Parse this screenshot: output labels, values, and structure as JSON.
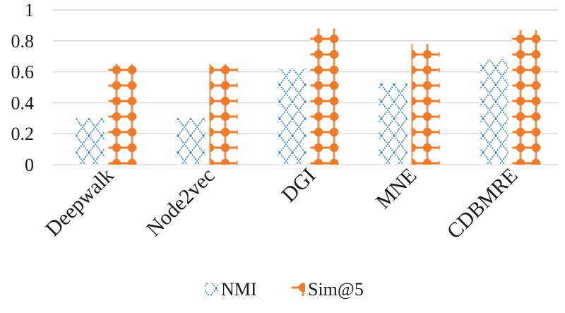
{
  "chart_data": {
    "type": "bar",
    "categories": [
      "Deepwalk",
      "Node2vec",
      "DGI",
      "MNE",
      "CDBMRE"
    ],
    "series": [
      {
        "name": "NMI",
        "values": [
          0.3,
          0.3,
          0.62,
          0.53,
          0.68
        ],
        "color": "#4a86c8",
        "pattern": "diamond-lattice"
      },
      {
        "name": "Sim@5",
        "values": [
          0.65,
          0.65,
          0.88,
          0.78,
          0.87
        ],
        "color": "#ee7a2a",
        "pattern": "dotted-diamond"
      }
    ],
    "ylim": [
      0,
      1
    ],
    "yticks": [
      "0",
      "0.2",
      "0.4",
      "0.6",
      "0.8",
      "1"
    ],
    "grid": true,
    "legend_position": "bottom"
  }
}
